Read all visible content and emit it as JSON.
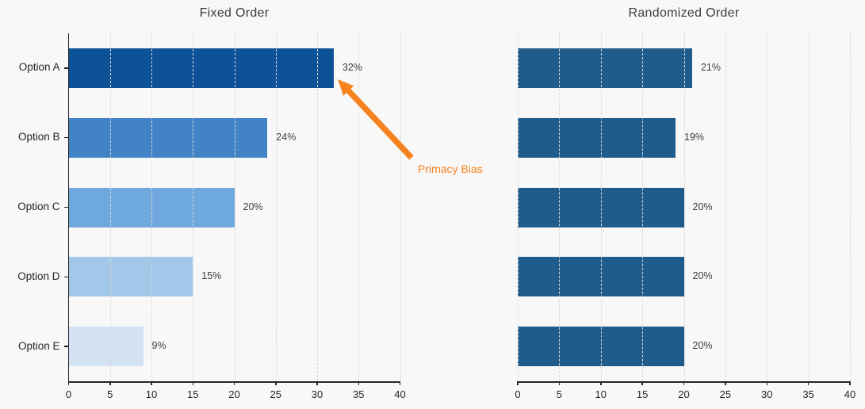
{
  "page": {
    "background": "#f8f8f8"
  },
  "style": {
    "grid_color": "#d9d9d9",
    "axis_color": "#262626",
    "text_color": "#3d3d3d",
    "title_color": "#3d3d3d",
    "accent_orange": "#f5821f"
  },
  "annotation": {
    "text": "Primacy Bias",
    "color": "#f5821f",
    "points_to": "end of Option A bar in Fixed Order chart"
  },
  "chart_data": [
    {
      "type": "bar",
      "orientation": "horizontal",
      "title": "Fixed Order",
      "categories": [
        "Option A",
        "Option B",
        "Option C",
        "Option D",
        "Option E"
      ],
      "values": [
        32,
        24,
        20,
        15,
        9
      ],
      "value_labels": [
        "32%",
        "24%",
        "20%",
        "15%",
        "9%"
      ],
      "bar_colors": [
        "#0d5296",
        "#4183c4",
        "#6fa8dc",
        "#a3c7e8",
        "#d3e3f3"
      ],
      "xlim": [
        0,
        40
      ],
      "xticks": [
        0,
        5,
        10,
        15,
        20,
        25,
        30,
        35,
        40
      ],
      "grid": "dashed-vertical",
      "legend": "none",
      "show_y_axis_labels": true,
      "show_y_spine": true
    },
    {
      "type": "bar",
      "orientation": "horizontal",
      "title": "Randomized Order",
      "categories": [
        "Option A",
        "Option B",
        "Option C",
        "Option D",
        "Option E"
      ],
      "values": [
        21,
        19,
        20,
        20,
        20
      ],
      "value_labels": [
        "21%",
        "19%",
        "20%",
        "20%",
        "20%"
      ],
      "bar_colors": [
        "#1f5c8c",
        "#1f5c8c",
        "#1f5c8c",
        "#1f5c8c",
        "#1f5c8c"
      ],
      "xlim": [
        0,
        40
      ],
      "xticks": [
        0,
        5,
        10,
        15,
        20,
        25,
        30,
        35,
        40
      ],
      "grid": "dashed-vertical",
      "legend": "none",
      "show_y_axis_labels": false,
      "show_y_spine": false
    }
  ]
}
